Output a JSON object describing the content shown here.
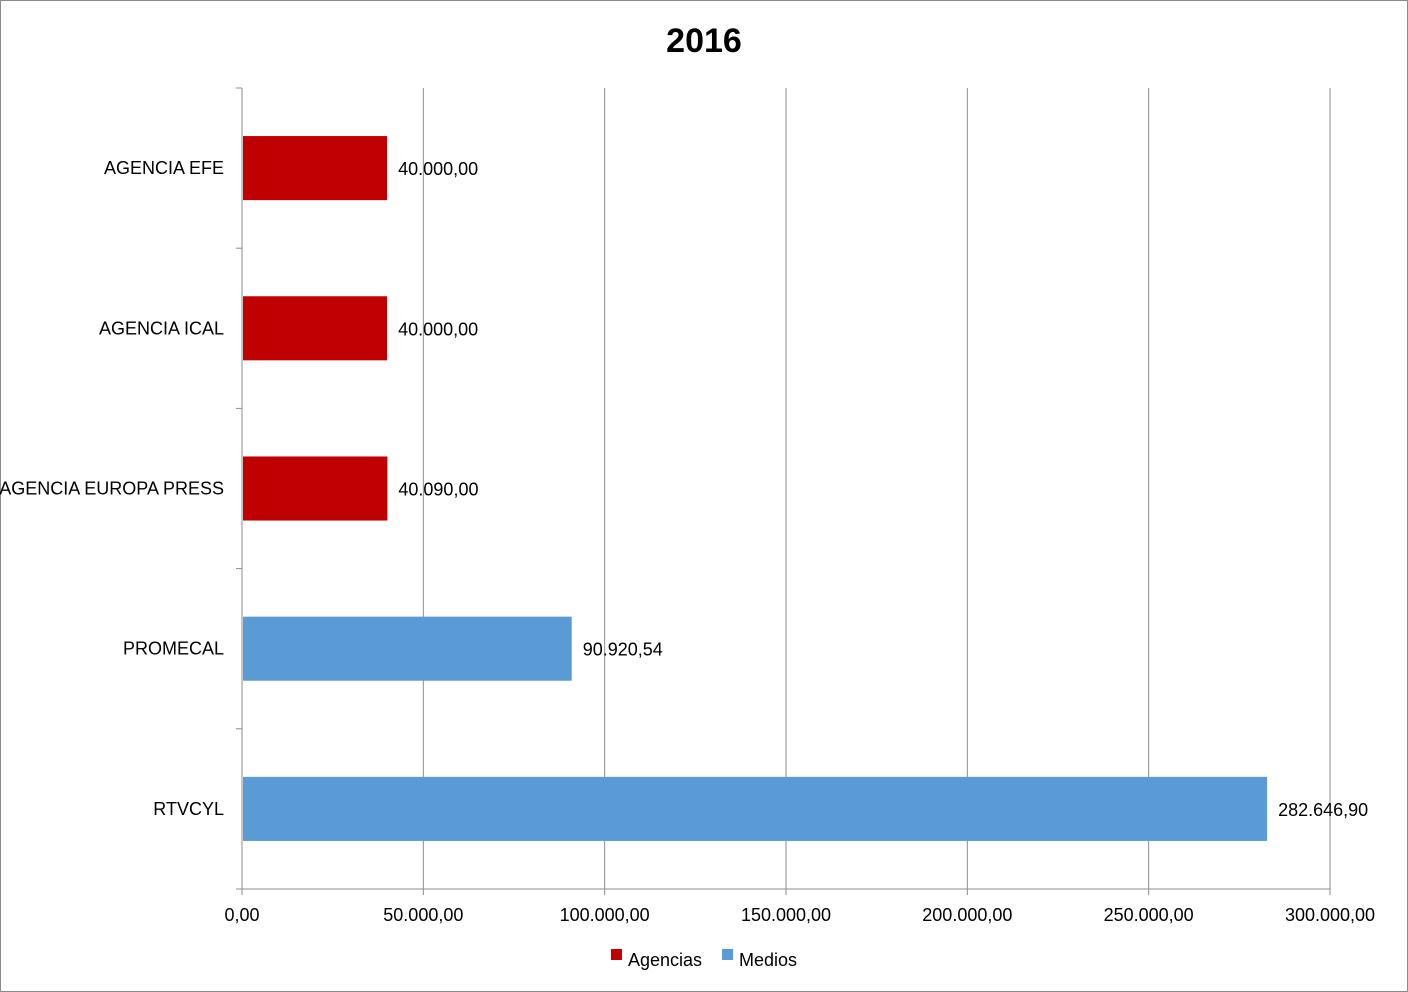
{
  "chart_data": {
    "type": "bar",
    "orientation": "horizontal",
    "title": "2016",
    "xlabel": "",
    "ylabel": "",
    "xlim": [
      0,
      300000
    ],
    "x_ticks": [
      0,
      50000,
      100000,
      150000,
      200000,
      250000,
      300000
    ],
    "x_tick_labels": [
      "0,00",
      "50.000,00",
      "100.000,00",
      "150.000,00",
      "200.000,00",
      "250.000,00",
      "300.000,00"
    ],
    "grid": "vertical",
    "legend_position": "bottom",
    "series": [
      {
        "name": "Agencias",
        "color": "#C00000"
      },
      {
        "name": "Medios",
        "color": "#5B9BD5"
      }
    ],
    "categories": [
      "AGENCIA EFE",
      "AGENCIA ICAL",
      "AGENCIA EUROPA PRESS",
      "PROMECAL",
      "RTVCYL"
    ],
    "bars": [
      {
        "category": "AGENCIA EFE",
        "series": "Agencias",
        "value": 40000.0,
        "label": "40.000,00"
      },
      {
        "category": "AGENCIA ICAL",
        "series": "Agencias",
        "value": 40000.0,
        "label": "40.000,00"
      },
      {
        "category": "AGENCIA EUROPA PRESS",
        "series": "Agencias",
        "value": 40090.0,
        "label": "40.090,00"
      },
      {
        "category": "PROMECAL",
        "series": "Medios",
        "value": 90920.54,
        "label": "90.920,54"
      },
      {
        "category": "RTVCYL",
        "series": "Medios",
        "value": 282646.9,
        "label": "282.646,90"
      }
    ]
  }
}
